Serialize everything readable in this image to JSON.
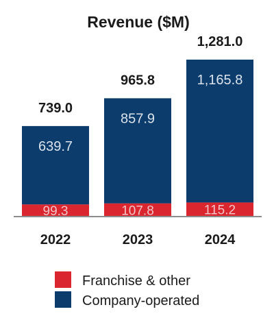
{
  "chart_data": {
    "type": "bar",
    "stacked": true,
    "title": "Revenue ($M)",
    "categories": [
      "2022",
      "2023",
      "2024"
    ],
    "series": [
      {
        "name": "Franchise & other",
        "color": "#d9262f",
        "values": [
          99.3,
          107.8,
          115.2
        ]
      },
      {
        "name": "Company-operated",
        "color": "#0b3c6b",
        "values": [
          639.7,
          857.9,
          1165.8
        ]
      }
    ],
    "totals": [
      "739.0",
      "965.8",
      "1,281.0"
    ],
    "segment_labels": [
      [
        "99.3",
        "107.8",
        "115.2"
      ],
      [
        "639.7",
        "857.9",
        "1,165.8"
      ]
    ],
    "ylim": [
      0,
      1281
    ],
    "grid": false,
    "legend": "bottom"
  }
}
